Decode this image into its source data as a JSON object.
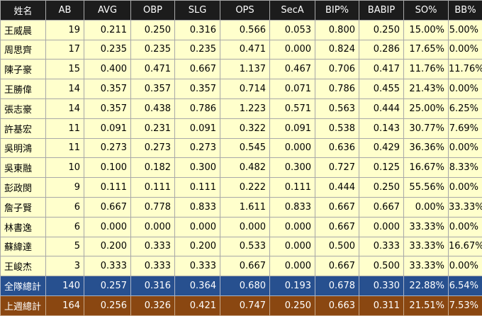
{
  "headers": [
    "姓名",
    "AB",
    "AVG",
    "OBP",
    "SLG",
    "OPS",
    "SecA",
    "BIP%",
    "BABIP",
    "SO%",
    "BB%"
  ],
  "rows": [
    [
      "王威晨",
      "19",
      "0.211",
      "0.250",
      "0.316",
      "0.566",
      "0.053",
      "0.800",
      "0.250",
      "15.00%",
      "5.00%"
    ],
    [
      "周思齊",
      "17",
      "0.235",
      "0.235",
      "0.235",
      "0.471",
      "0.000",
      "0.824",
      "0.286",
      "17.65%",
      "0.00%"
    ],
    [
      "陳子豪",
      "15",
      "0.400",
      "0.471",
      "0.667",
      "1.137",
      "0.467",
      "0.706",
      "0.417",
      "11.76%",
      "11.76%"
    ],
    [
      "王勝偉",
      "14",
      "0.357",
      "0.357",
      "0.357",
      "0.714",
      "0.071",
      "0.786",
      "0.455",
      "21.43%",
      "0.00%"
    ],
    [
      "張志豪",
      "14",
      "0.357",
      "0.438",
      "0.786",
      "1.223",
      "0.571",
      "0.563",
      "0.444",
      "25.00%",
      "6.25%"
    ],
    [
      "許基宏",
      "11",
      "0.091",
      "0.231",
      "0.091",
      "0.322",
      "0.091",
      "0.538",
      "0.143",
      "30.77%",
      "7.69%"
    ],
    [
      "吳明鴻",
      "11",
      "0.273",
      "0.273",
      "0.273",
      "0.545",
      "0.000",
      "0.636",
      "0.429",
      "36.36%",
      "0.00%"
    ],
    [
      "吳東融",
      "10",
      "0.100",
      "0.182",
      "0.300",
      "0.482",
      "0.300",
      "0.727",
      "0.125",
      "16.67%",
      "8.33%"
    ],
    [
      "彭政閔",
      "9",
      "0.111",
      "0.111",
      "0.111",
      "0.222",
      "0.111",
      "0.444",
      "0.250",
      "55.56%",
      "0.00%"
    ],
    [
      "詹子賢",
      "6",
      "0.667",
      "0.778",
      "0.833",
      "1.611",
      "0.833",
      "0.667",
      "0.667",
      "0.00%",
      "33.33%"
    ],
    [
      "林書逸",
      "6",
      "0.000",
      "0.000",
      "0.000",
      "0.000",
      "0.000",
      "0.667",
      "0.000",
      "33.33%",
      "0.00%"
    ],
    [
      "蘇緯達",
      "5",
      "0.200",
      "0.333",
      "0.200",
      "0.533",
      "0.000",
      "0.500",
      "0.333",
      "33.33%",
      "16.67%"
    ],
    [
      "王峻杰",
      "3",
      "0.333",
      "0.333",
      "0.333",
      "0.667",
      "0.000",
      "0.667",
      "0.500",
      "33.33%",
      "0.00%"
    ]
  ],
  "team_total": [
    "全隊總計",
    "140",
    "0.257",
    "0.316",
    "0.364",
    "0.680",
    "0.193",
    "0.678",
    "0.330",
    "22.88%",
    "6.54%"
  ],
  "last_week_total": [
    "上週總計",
    "164",
    "0.256",
    "0.326",
    "0.421",
    "0.747",
    "0.250",
    "0.663",
    "0.311",
    "21.51%",
    "7.53%"
  ],
  "colors": {
    "header_bg": "#1c1c1c",
    "row_bg": "#ffffcc",
    "team_total_bg": "#27508f",
    "last_week_total_bg": "#8a4711"
  }
}
